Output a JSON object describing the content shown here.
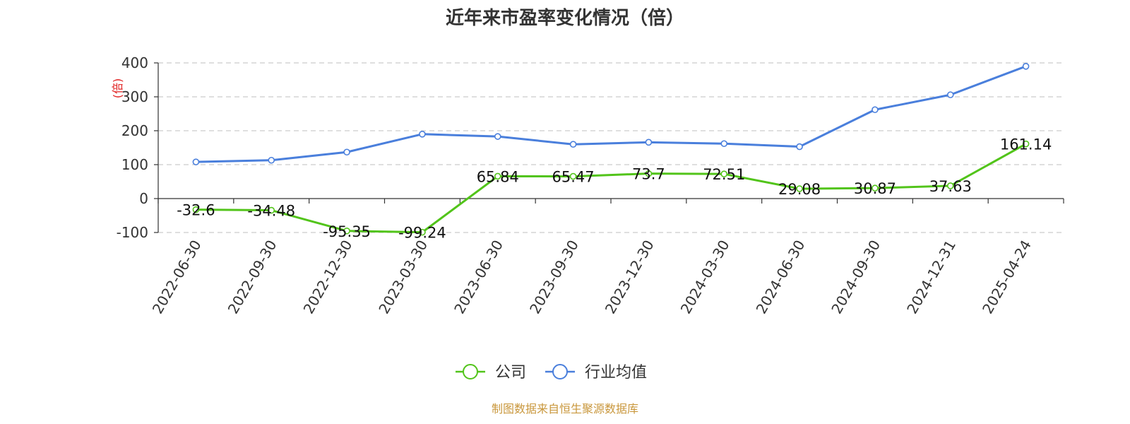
{
  "chart_data": {
    "type": "line",
    "title": "近年来市盈率变化情况（倍）",
    "ylabel": "(倍)",
    "xlabel": "",
    "ylim": [
      -100,
      400
    ],
    "yticks": [
      400,
      300,
      200,
      100,
      0,
      -100
    ],
    "grid": true,
    "legend_position": "bottom",
    "categories": [
      "2022-06-30",
      "2022-09-30",
      "2022-12-30",
      "2023-03-30",
      "2023-06-30",
      "2023-09-30",
      "2023-12-30",
      "2024-03-30",
      "2024-06-30",
      "2024-09-30",
      "2024-12-31",
      "2025-04-24"
    ],
    "series": [
      {
        "name": "公司",
        "color": "#52c41a",
        "values": [
          -32.6,
          -34.48,
          -95.35,
          -99.24,
          65.84,
          65.47,
          73.7,
          72.51,
          29.08,
          30.87,
          37.63,
          161.14
        ],
        "labels": [
          "-32.6",
          "-34.48",
          "-95.35",
          "-99.24",
          "65.84",
          "65.47",
          "73.7",
          "72.51",
          "29.08",
          "30.87",
          "37.63",
          "161.14"
        ]
      },
      {
        "name": "行业均值",
        "color": "#4a7fdc",
        "values": [
          108,
          113,
          137,
          190,
          183,
          160,
          166,
          162,
          153,
          262,
          306,
          390
        ]
      }
    ]
  },
  "source": "制图数据来自恒生聚源数据库"
}
